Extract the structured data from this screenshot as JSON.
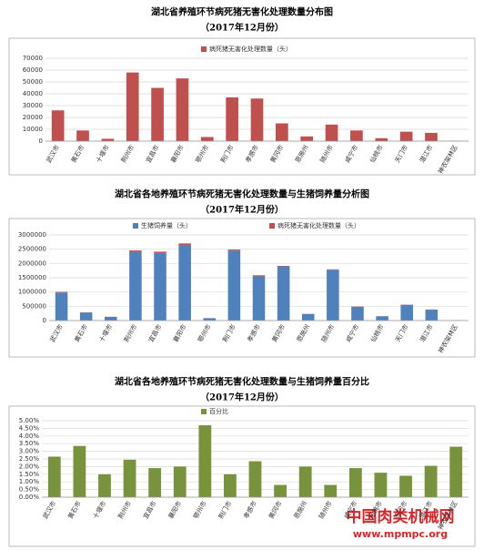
{
  "chart_data": [
    {
      "type": "bar",
      "title": "湖北省养殖环节病死猪无害化处理数量分布图",
      "subtitle": "（2017年12月份）",
      "categories": [
        "武汉市",
        "黄石市",
        "十堰市",
        "荆州市",
        "宜昌市",
        "襄阳市",
        "鄂州市",
        "荆门市",
        "孝感市",
        "黄冈市",
        "恩施州",
        "随州市",
        "咸宁市",
        "仙桃市",
        "天门市",
        "潜江市",
        "神农架林区"
      ],
      "series": [
        {
          "name": "病死猪无害化处理数量（头）",
          "color": "#c0504d",
          "values": [
            26000,
            9000,
            2000,
            58000,
            45000,
            53000,
            3500,
            37000,
            36000,
            15000,
            4000,
            14000,
            9000,
            2500,
            8000,
            7000,
            300
          ]
        }
      ],
      "ylim": [
        0,
        70000
      ],
      "yticks": [
        0,
        10000,
        20000,
        30000,
        40000,
        50000,
        60000,
        70000
      ],
      "stacked": false
    },
    {
      "type": "bar",
      "title": "湖北省各地养殖环节病死猪无害化处理数量与生猪饲养量分析图",
      "subtitle": "（2017年12月份）",
      "categories": [
        "武汉市",
        "黄石市",
        "十堰市",
        "荆州市",
        "宜昌市",
        "襄阳市",
        "鄂州市",
        "荆门市",
        "孝感市",
        "黄冈市",
        "恩施州",
        "随州市",
        "咸宁市",
        "仙桃市",
        "天门市",
        "潜江市",
        "神农架林区"
      ],
      "series": [
        {
          "name": "生猪饲养量（头）",
          "color": "#4f81bd",
          "values": [
            980000,
            280000,
            130000,
            2400000,
            2370000,
            2650000,
            80000,
            2450000,
            1550000,
            1900000,
            230000,
            1780000,
            480000,
            150000,
            550000,
            380000,
            10000
          ]
        },
        {
          "name": "病死猪无害化处理数量（头）",
          "color": "#c0504d",
          "values": [
            26000,
            9000,
            2000,
            58000,
            45000,
            53000,
            3500,
            37000,
            36000,
            15000,
            4000,
            14000,
            9000,
            2500,
            8000,
            7000,
            300
          ]
        }
      ],
      "ylim": [
        0,
        3000000
      ],
      "yticks": [
        0,
        500000,
        1000000,
        1500000,
        2000000,
        2500000,
        3000000
      ],
      "stacked": true
    },
    {
      "type": "bar",
      "title": "湖北省各地养殖环节病死猪无害化处理数量与生猪饲养量百分比",
      "subtitle": "（2017年12月份）",
      "categories": [
        "武汉市",
        "黄石市",
        "十堰市",
        "荆州市",
        "宜昌市",
        "襄阳市",
        "鄂州市",
        "荆门市",
        "孝感市",
        "黄冈市",
        "恩施州",
        "随州市",
        "咸宁市",
        "仙桃市",
        "天门市",
        "潜江市",
        "神农架林区"
      ],
      "series": [
        {
          "name": "百分比",
          "color": "#77933c",
          "values": [
            2.65,
            3.35,
            1.5,
            2.45,
            1.9,
            2.0,
            4.7,
            1.5,
            2.35,
            0.8,
            2.0,
            0.8,
            1.9,
            1.6,
            1.4,
            2.05,
            3.3
          ]
        }
      ],
      "ylim": [
        0,
        5
      ],
      "yticks": [
        {
          "value": 0,
          "label": "0.00%"
        },
        {
          "value": 0.5,
          "label": "0.50%"
        },
        {
          "value": 1,
          "label": "1.00%"
        },
        {
          "value": 1.5,
          "label": "1.50%"
        },
        {
          "value": 2,
          "label": "2.00%"
        },
        {
          "value": 2.5,
          "label": "2.50%"
        },
        {
          "value": 3,
          "label": "3.00%"
        },
        {
          "value": 3.5,
          "label": "3.50%"
        },
        {
          "value": 4,
          "label": "4.00%"
        },
        {
          "value": 4.5,
          "label": "4.50%"
        },
        {
          "value": 5,
          "label": "5.00%"
        }
      ],
      "stacked": false
    }
  ],
  "watermark": {
    "title": "中国肉类机械网",
    "url": "www.mpmpc.org"
  }
}
